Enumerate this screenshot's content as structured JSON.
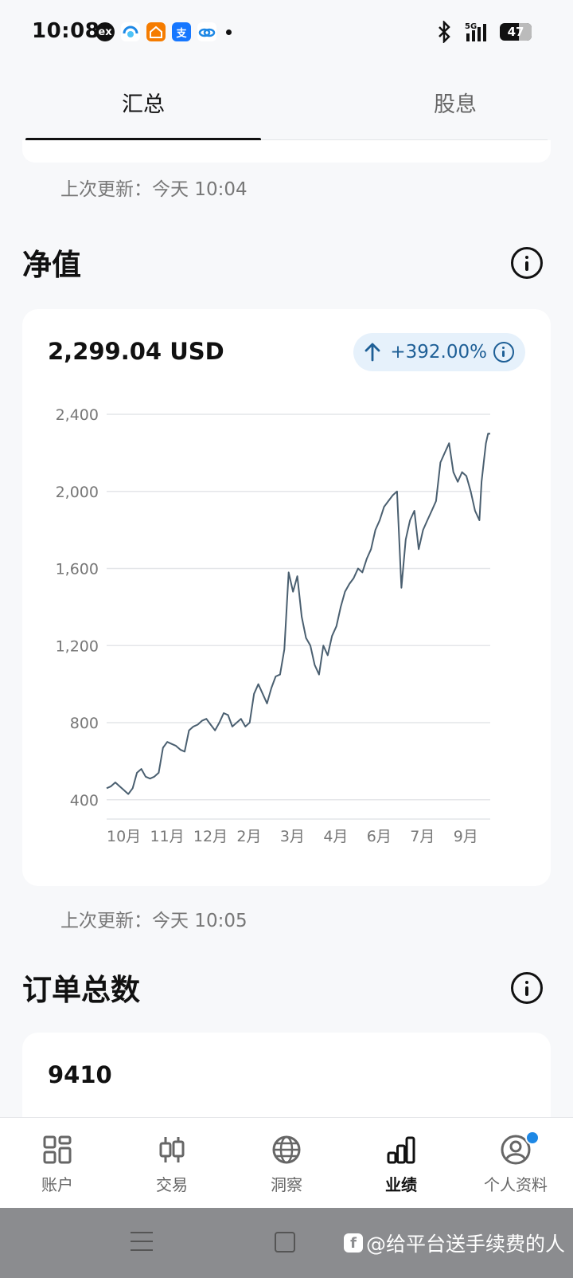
{
  "status_bar": {
    "time": "10:08",
    "battery": "47",
    "notification_icons": [
      "ex-icon",
      "cloud-swirl-icon",
      "house-app-icon",
      "alipay-icon",
      "cloud-link-icon"
    ]
  },
  "tabs": [
    {
      "label": "汇总",
      "active": true
    },
    {
      "label": "股息",
      "active": false
    }
  ],
  "updates": {
    "first": "上次更新：今天 10:04",
    "second": "上次更新：今天 10:05"
  },
  "nav_section": {
    "title": "净值",
    "value": "2,299.04 USD",
    "change": "+392.00%",
    "change_color": "#1e5f96"
  },
  "orders_section": {
    "title": "订单总数",
    "value": "9410"
  },
  "chart_data": {
    "type": "line",
    "title": "",
    "xlabel": "",
    "ylabel": "",
    "ylim": [
      300,
      2400
    ],
    "yticks": [
      "2,400",
      "2,000",
      "1,600",
      "1,200",
      "800",
      "400"
    ],
    "ytick_values": [
      2400,
      2000,
      1600,
      1200,
      800,
      400
    ],
    "xticks": [
      "10月",
      "11月",
      "12月",
      "2月",
      "3月",
      "4月",
      "6月",
      "7月",
      "9月"
    ],
    "xtick_values": [
      0,
      1,
      2,
      3,
      4,
      5,
      6,
      7,
      8
    ],
    "grid": true,
    "color": "#4a5f70",
    "x": [
      0,
      0.1,
      0.2,
      0.3,
      0.4,
      0.5,
      0.6,
      0.7,
      0.8,
      0.9,
      1.0,
      1.1,
      1.2,
      1.3,
      1.4,
      1.5,
      1.6,
      1.7,
      1.8,
      1.9,
      2.0,
      2.1,
      2.2,
      2.3,
      2.4,
      2.5,
      2.6,
      2.7,
      2.8,
      2.9,
      3.0,
      3.1,
      3.2,
      3.3,
      3.4,
      3.5,
      3.6,
      3.7,
      3.8,
      3.9,
      4.0,
      4.1,
      4.2,
      4.3,
      4.4,
      4.5,
      4.6,
      4.7,
      4.8,
      4.9,
      5.0,
      5.1,
      5.2,
      5.3,
      5.4,
      5.5,
      5.6,
      5.7,
      5.8,
      5.9,
      6.0,
      6.1,
      6.2,
      6.3,
      6.4,
      6.5,
      6.6,
      6.7,
      6.8,
      6.9,
      7.0,
      7.1,
      7.2,
      7.3,
      7.4,
      7.5,
      7.6,
      7.7,
      7.8,
      7.9,
      8.0,
      8.1,
      8.2,
      8.3,
      8.4,
      8.5,
      8.6,
      8.65,
      8.7,
      8.75,
      8.8,
      8.85
    ],
    "values": [
      460,
      470,
      490,
      470,
      450,
      430,
      460,
      540,
      560,
      520,
      510,
      520,
      540,
      670,
      700,
      690,
      680,
      660,
      650,
      760,
      780,
      790,
      810,
      820,
      790,
      760,
      800,
      850,
      840,
      780,
      800,
      820,
      780,
      800,
      950,
      1000,
      950,
      900,
      980,
      1040,
      1050,
      1180,
      1580,
      1480,
      1560,
      1350,
      1240,
      1200,
      1100,
      1050,
      1200,
      1150,
      1250,
      1300,
      1400,
      1480,
      1520,
      1550,
      1600,
      1580,
      1650,
      1700,
      1800,
      1850,
      1920,
      1950,
      1980,
      2000,
      1500,
      1750,
      1850,
      1900,
      1700,
      1800,
      1850,
      1900,
      1950,
      2150,
      2200,
      2250,
      2100,
      2050,
      2100,
      2080,
      2000,
      1900,
      1850,
      2050,
      2150,
      2250,
      2300,
      2299
    ]
  },
  "bottom_nav": [
    {
      "label": "账户",
      "icon": "grid-icon",
      "active": false
    },
    {
      "label": "交易",
      "icon": "candlestick-icon",
      "active": false
    },
    {
      "label": "洞察",
      "icon": "globe-icon",
      "active": false
    },
    {
      "label": "业绩",
      "icon": "bar-chart-icon",
      "active": true
    },
    {
      "label": "个人资料",
      "icon": "profile-icon",
      "active": false,
      "badge": true
    }
  ],
  "watermark": "@给平台送手续费的人"
}
